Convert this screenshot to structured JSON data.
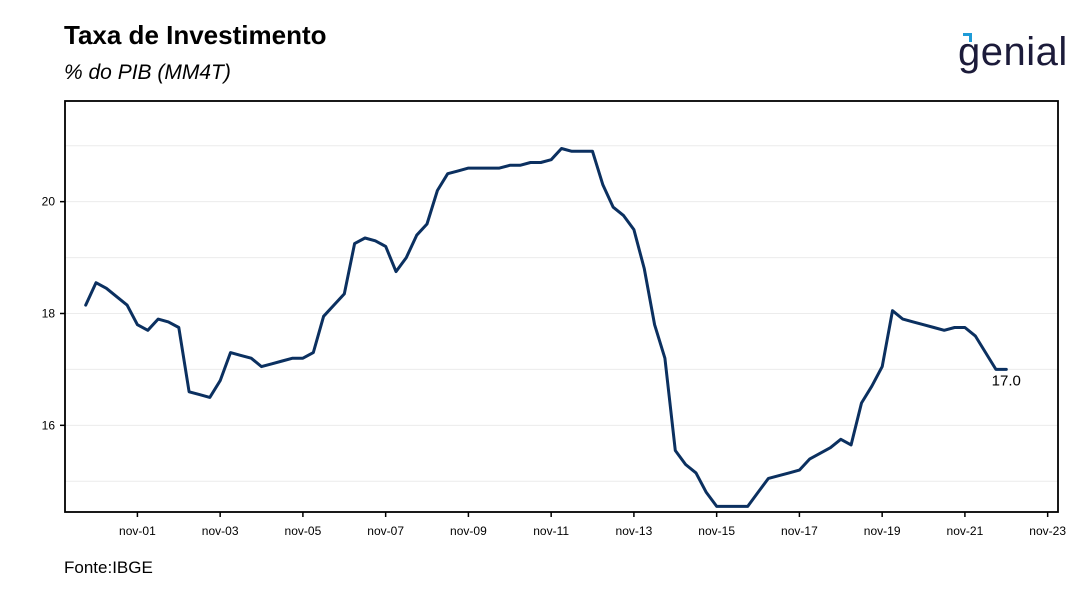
{
  "header": {
    "title": "Taxa de Investimento",
    "subtitle": "% do PIB (MM4T)"
  },
  "logo": {
    "text": "genial",
    "accent_color": "#1e9bd7",
    "text_color": "#1c1b3a"
  },
  "source": "Fonte:IBGE",
  "chart_data": {
    "type": "line",
    "title": "Taxa de Investimento",
    "subtitle": "% do PIB (MM4T)",
    "xlabel": "",
    "ylabel": "",
    "x_ticks": [
      "nov-01",
      "nov-03",
      "nov-05",
      "nov-07",
      "nov-09",
      "nov-11",
      "nov-13",
      "nov-15",
      "nov-17",
      "nov-19",
      "nov-21",
      "nov-23"
    ],
    "y_ticks": [
      16,
      18,
      20
    ],
    "ylim": [
      14.45,
      21.8
    ],
    "xlim": [
      "2000-02",
      "2024-02"
    ],
    "grid": true,
    "legend": "none",
    "line_color": "#0b3060",
    "last_value_label": "17.0",
    "series": [
      {
        "x": [
          "2000-08",
          "2000-11",
          "2001-02",
          "2001-05",
          "2001-08",
          "2001-11",
          "2002-02",
          "2002-05",
          "2002-08",
          "2002-11",
          "2003-02",
          "2003-05",
          "2003-08",
          "2003-11",
          "2004-02",
          "2004-05",
          "2004-08",
          "2004-11",
          "2005-02",
          "2005-05",
          "2005-08",
          "2005-11",
          "2006-02",
          "2006-05",
          "2006-08",
          "2006-11",
          "2007-02",
          "2007-05",
          "2007-08",
          "2007-11",
          "2008-02",
          "2008-05",
          "2008-08",
          "2008-11",
          "2009-02",
          "2009-05",
          "2009-08",
          "2009-11",
          "2010-02",
          "2010-05",
          "2010-08",
          "2010-11",
          "2011-02",
          "2011-05",
          "2011-08",
          "2011-11",
          "2012-02",
          "2012-05",
          "2012-08",
          "2012-11",
          "2013-02",
          "2013-05",
          "2013-08",
          "2013-11",
          "2014-02",
          "2014-05",
          "2014-08",
          "2014-11",
          "2015-02",
          "2015-05",
          "2015-08",
          "2015-11",
          "2016-02",
          "2016-05",
          "2016-08",
          "2016-11",
          "2017-02",
          "2017-05",
          "2017-08",
          "2017-11",
          "2018-02",
          "2018-05",
          "2018-08",
          "2018-11",
          "2019-02",
          "2019-05",
          "2019-08",
          "2019-11",
          "2020-02",
          "2020-05",
          "2020-08",
          "2020-11",
          "2021-02",
          "2021-05",
          "2021-08",
          "2021-11",
          "2022-02",
          "2022-05",
          "2022-08",
          "2022-11"
        ],
        "y": [
          18.15,
          18.55,
          18.45,
          18.3,
          18.15,
          17.8,
          17.7,
          17.9,
          17.85,
          17.75,
          16.6,
          16.55,
          16.5,
          16.8,
          17.3,
          17.25,
          17.2,
          17.05,
          17.1,
          17.15,
          17.2,
          17.2,
          17.3,
          17.95,
          18.15,
          18.35,
          19.25,
          19.35,
          19.3,
          19.2,
          18.75,
          19.0,
          19.4,
          19.6,
          20.2,
          20.5,
          20.55,
          20.6,
          20.6,
          20.6,
          20.6,
          20.65,
          20.65,
          20.7,
          20.7,
          20.75,
          20.95,
          20.9,
          20.9,
          20.9,
          20.3,
          19.9,
          19.75,
          19.5,
          18.8,
          17.8,
          17.2,
          15.55,
          15.3,
          15.15,
          14.8,
          14.55,
          14.55,
          14.55,
          14.55,
          14.8,
          15.05,
          15.1,
          15.15,
          15.2,
          15.4,
          15.5,
          15.6,
          15.75,
          15.65,
          16.4,
          16.7,
          17.05,
          18.05,
          17.9,
          17.85,
          17.8,
          17.75,
          17.7,
          17.75,
          17.75,
          17.6,
          17.3,
          17.0,
          17.0
        ]
      }
    ]
  }
}
